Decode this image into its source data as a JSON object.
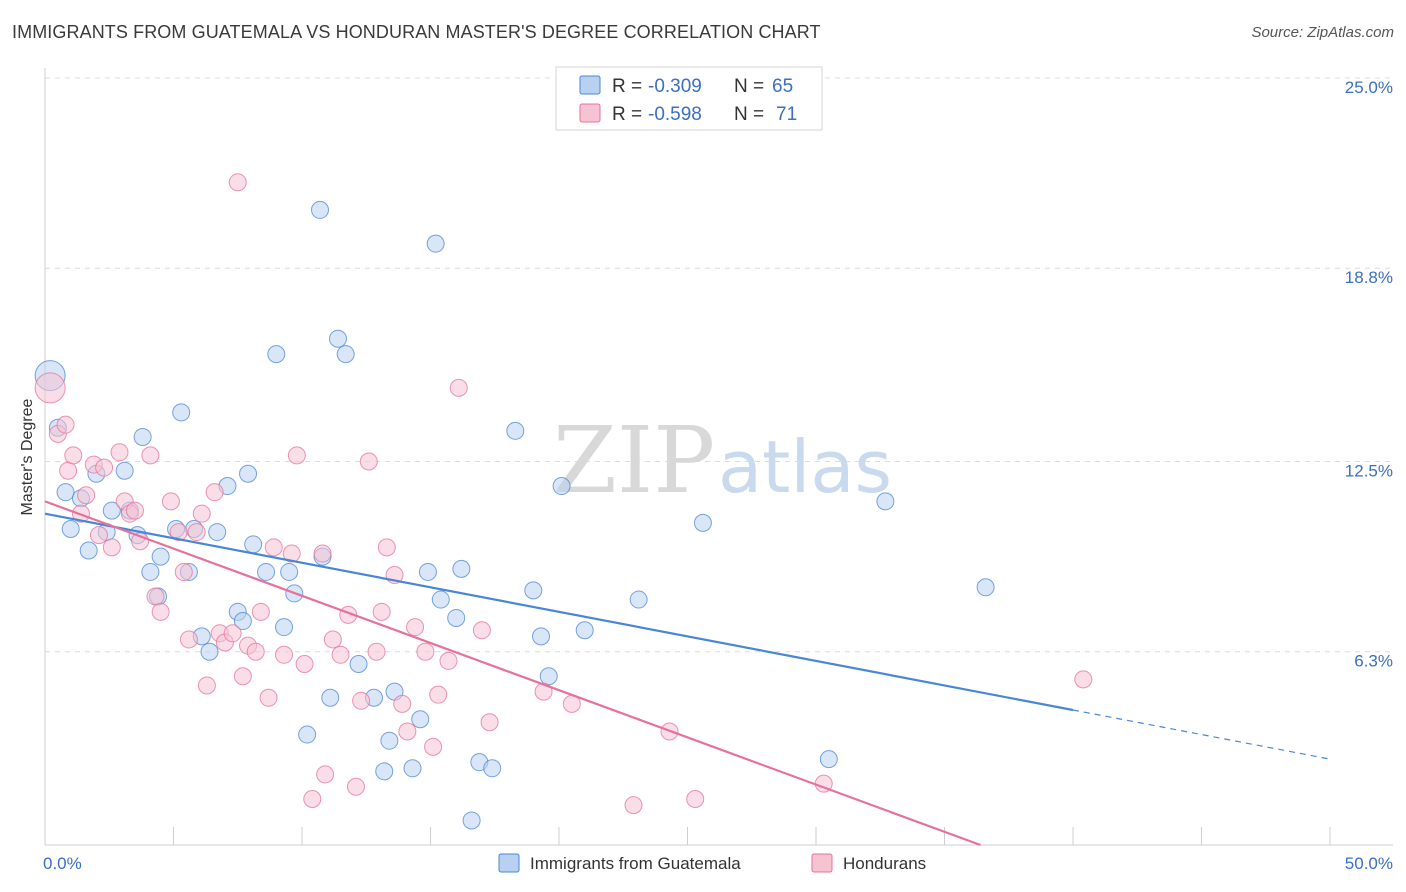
{
  "title": "IMMIGRANTS FROM GUATEMALA VS HONDURAN MASTER'S DEGREE CORRELATION CHART",
  "source": "Source: ZipAtlas.com",
  "watermark": {
    "zip": "ZIP",
    "atlas": "atlas"
  },
  "colors": {
    "series1": "#4a86d8",
    "series2": "#e6719a",
    "series1_fill": "#b9d1f0",
    "series2_fill": "#f6c3d3",
    "tick_text": "#3a6fc4"
  },
  "legend": {
    "rows": [
      {
        "r_label": "R = ",
        "r_value": "-0.309",
        "n_label": "N = ",
        "n_value": "65"
      },
      {
        "r_label": "R = ",
        "r_value": "-0.598",
        "n_label": "N = ",
        "n_value": "71"
      }
    ]
  },
  "chart_data": {
    "type": "scatter",
    "title": "IMMIGRANTS FROM GUATEMALA VS HONDURAN MASTER'S DEGREE CORRELATION CHART",
    "xlabel": "",
    "ylabel": "Master's Degree",
    "xlim": [
      0,
      50
    ],
    "ylim": [
      0,
      25
    ],
    "x_tick_labels": [
      "0.0%",
      "50.0%"
    ],
    "y_ticks": [
      6.3,
      12.5,
      18.8,
      25.0
    ],
    "y_tick_labels": [
      "6.3%",
      "12.5%",
      "18.8%",
      "25.0%"
    ],
    "grid": true,
    "legend_position": "top-center",
    "series": [
      {
        "name": "Immigrants from Guatemala",
        "color": "#4a86d8",
        "r": -0.309,
        "n": 65,
        "trend": {
          "x0": 0,
          "y0": 10.8,
          "x1": 40,
          "y1": 4.4,
          "dash_to_x": 50,
          "dash_to_y": 2.8
        },
        "points": [
          [
            0.2,
            15.3
          ],
          [
            0.5,
            13.6
          ],
          [
            0.8,
            11.5
          ],
          [
            1.0,
            10.3
          ],
          [
            1.4,
            11.3
          ],
          [
            1.7,
            9.6
          ],
          [
            2.0,
            12.1
          ],
          [
            2.4,
            10.2
          ],
          [
            2.6,
            10.9
          ],
          [
            3.1,
            12.2
          ],
          [
            3.3,
            10.9
          ],
          [
            3.6,
            10.1
          ],
          [
            3.8,
            13.3
          ],
          [
            4.1,
            8.9
          ],
          [
            4.4,
            8.1
          ],
          [
            4.5,
            9.4
          ],
          [
            5.1,
            10.3
          ],
          [
            5.3,
            14.1
          ],
          [
            5.6,
            8.9
          ],
          [
            5.8,
            10.3
          ],
          [
            6.1,
            6.8
          ],
          [
            6.4,
            6.3
          ],
          [
            6.7,
            10.2
          ],
          [
            7.1,
            11.7
          ],
          [
            7.5,
            7.6
          ],
          [
            7.7,
            7.3
          ],
          [
            7.9,
            12.1
          ],
          [
            8.1,
            9.8
          ],
          [
            8.6,
            8.9
          ],
          [
            9.0,
            16.0
          ],
          [
            9.3,
            7.1
          ],
          [
            9.5,
            8.9
          ],
          [
            9.7,
            8.2
          ],
          [
            10.2,
            3.6
          ],
          [
            10.8,
            9.4
          ],
          [
            10.7,
            20.7
          ],
          [
            11.1,
            4.8
          ],
          [
            11.4,
            16.5
          ],
          [
            11.7,
            16.0
          ],
          [
            12.2,
            5.9
          ],
          [
            12.8,
            4.8
          ],
          [
            13.2,
            2.4
          ],
          [
            13.4,
            3.4
          ],
          [
            13.6,
            5.0
          ],
          [
            14.3,
            2.5
          ],
          [
            14.6,
            4.1
          ],
          [
            14.9,
            8.9
          ],
          [
            15.2,
            19.6
          ],
          [
            15.4,
            8.0
          ],
          [
            16.0,
            7.4
          ],
          [
            16.2,
            9.0
          ],
          [
            16.6,
            0.8
          ],
          [
            16.9,
            2.7
          ],
          [
            17.4,
            2.5
          ],
          [
            18.3,
            13.5
          ],
          [
            19.0,
            8.3
          ],
          [
            19.3,
            6.8
          ],
          [
            19.6,
            5.5
          ],
          [
            20.1,
            11.7
          ],
          [
            21.0,
            7.0
          ],
          [
            23.1,
            8.0
          ],
          [
            25.6,
            10.5
          ],
          [
            30.5,
            2.8
          ],
          [
            32.7,
            11.2
          ],
          [
            36.6,
            8.4
          ]
        ]
      },
      {
        "name": "Hondurans",
        "color": "#e6719a",
        "r": -0.598,
        "n": 71,
        "trend": {
          "x0": 0,
          "y0": 11.2,
          "x1": 36.4,
          "y1": 0
        },
        "points": [
          [
            0.2,
            14.9
          ],
          [
            0.5,
            13.4
          ],
          [
            0.8,
            13.7
          ],
          [
            0.9,
            12.2
          ],
          [
            1.1,
            12.7
          ],
          [
            1.4,
            10.8
          ],
          [
            1.6,
            11.4
          ],
          [
            1.9,
            12.4
          ],
          [
            2.1,
            10.1
          ],
          [
            2.3,
            12.3
          ],
          [
            2.6,
            9.7
          ],
          [
            2.9,
            12.8
          ],
          [
            3.1,
            11.2
          ],
          [
            3.3,
            10.8
          ],
          [
            3.5,
            10.9
          ],
          [
            3.7,
            9.9
          ],
          [
            4.1,
            12.7
          ],
          [
            4.3,
            8.1
          ],
          [
            4.5,
            7.6
          ],
          [
            4.9,
            11.2
          ],
          [
            5.2,
            10.2
          ],
          [
            5.4,
            8.9
          ],
          [
            5.6,
            6.7
          ],
          [
            5.9,
            10.2
          ],
          [
            6.1,
            10.8
          ],
          [
            6.3,
            5.2
          ],
          [
            6.6,
            11.5
          ],
          [
            6.8,
            6.9
          ],
          [
            7.0,
            6.6
          ],
          [
            7.3,
            6.9
          ],
          [
            7.5,
            21.6
          ],
          [
            7.7,
            5.5
          ],
          [
            7.9,
            6.5
          ],
          [
            8.2,
            6.3
          ],
          [
            8.4,
            7.6
          ],
          [
            8.7,
            4.8
          ],
          [
            8.9,
            9.7
          ],
          [
            9.3,
            6.2
          ],
          [
            9.6,
            9.5
          ],
          [
            9.8,
            12.7
          ],
          [
            10.1,
            5.9
          ],
          [
            10.4,
            1.5
          ],
          [
            10.8,
            9.5
          ],
          [
            10.9,
            2.3
          ],
          [
            11.2,
            6.7
          ],
          [
            11.5,
            6.2
          ],
          [
            11.8,
            7.5
          ],
          [
            12.1,
            1.9
          ],
          [
            12.3,
            4.7
          ],
          [
            12.6,
            12.5
          ],
          [
            12.9,
            6.3
          ],
          [
            13.1,
            7.6
          ],
          [
            13.3,
            9.7
          ],
          [
            13.6,
            8.8
          ],
          [
            13.9,
            4.6
          ],
          [
            14.1,
            3.7
          ],
          [
            14.4,
            7.1
          ],
          [
            14.8,
            6.3
          ],
          [
            15.1,
            3.2
          ],
          [
            15.3,
            4.9
          ],
          [
            15.7,
            6.0
          ],
          [
            16.1,
            14.9
          ],
          [
            17.0,
            7.0
          ],
          [
            17.3,
            4.0
          ],
          [
            19.4,
            5.0
          ],
          [
            20.5,
            4.6
          ],
          [
            22.9,
            1.3
          ],
          [
            24.3,
            3.7
          ],
          [
            25.3,
            1.5
          ],
          [
            30.3,
            2.0
          ],
          [
            40.4,
            5.4
          ]
        ]
      }
    ]
  }
}
